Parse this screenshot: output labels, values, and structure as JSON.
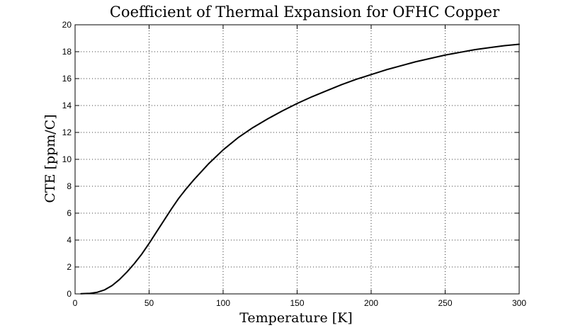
{
  "chart_data": {
    "type": "line",
    "title": "Coefficient of Thermal Expansion for OFHC Copper",
    "xlabel": "Temperature [K]",
    "ylabel": "CTE [ppm/C]",
    "xlim": [
      0,
      300
    ],
    "ylim": [
      0,
      20
    ],
    "xticks": [
      0,
      50,
      100,
      150,
      200,
      250,
      300
    ],
    "yticks": [
      0,
      2,
      4,
      6,
      8,
      10,
      12,
      14,
      16,
      18,
      20
    ],
    "grid": true,
    "line_color": "#000000",
    "series": [
      {
        "x": [
          4,
          10,
          15,
          20,
          25,
          30,
          35,
          40,
          45,
          50,
          55,
          60,
          65,
          70,
          75,
          80,
          90,
          100,
          110,
          120,
          130,
          140,
          150,
          160,
          170,
          180,
          190,
          200,
          210,
          220,
          230,
          240,
          250,
          260,
          270,
          280,
          290,
          300
        ],
        "y": [
          0.01,
          0.04,
          0.12,
          0.3,
          0.62,
          1.07,
          1.62,
          2.25,
          2.95,
          3.75,
          4.6,
          5.45,
          6.3,
          7.1,
          7.8,
          8.45,
          9.65,
          10.7,
          11.6,
          12.35,
          13.0,
          13.6,
          14.15,
          14.65,
          15.1,
          15.55,
          15.95,
          16.3,
          16.65,
          16.95,
          17.25,
          17.5,
          17.75,
          17.95,
          18.15,
          18.3,
          18.45,
          18.55
        ]
      }
    ]
  }
}
